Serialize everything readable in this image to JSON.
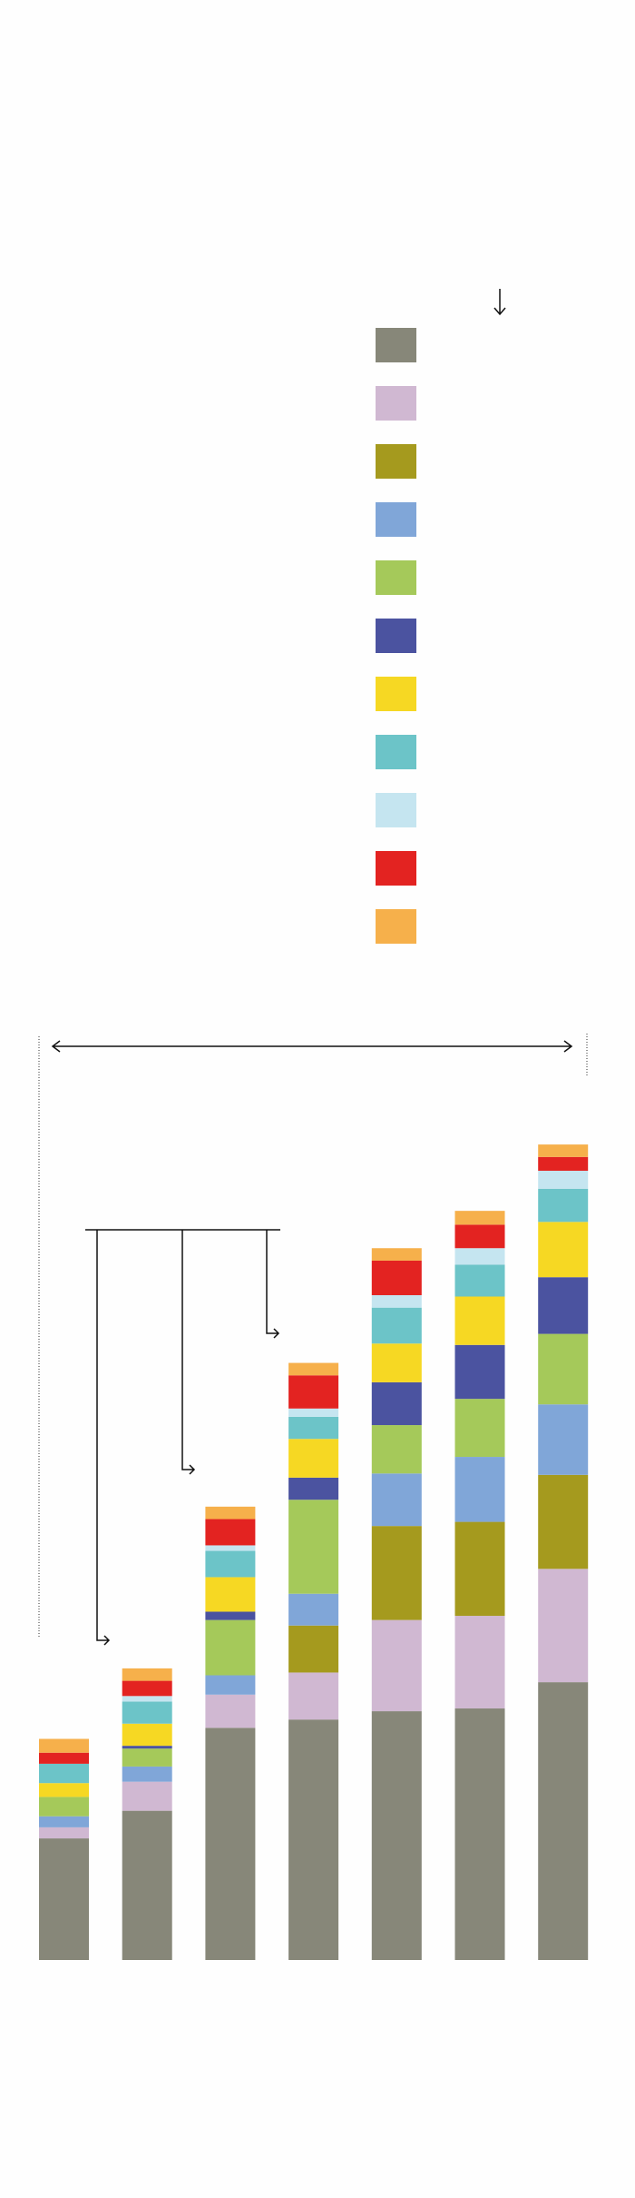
{
  "chart_data": {
    "type": "bar",
    "stacked": true,
    "categories": [
      null,
      null,
      null,
      null,
      null,
      null,
      null
    ],
    "ylim": [
      0,
      1418
    ],
    "series": [
      {
        "color": "#878779",
        "values": [
          88,
          108,
          168,
          174,
          180,
          182,
          201
        ]
      },
      {
        "color": "#d0b8d2",
        "values": [
          8,
          21,
          24,
          34,
          66,
          67,
          82
        ]
      },
      {
        "color": "#a59a1e",
        "values": [
          0,
          0,
          0,
          34,
          68,
          68,
          68
        ]
      },
      {
        "color": "#80a6d8",
        "values": [
          8,
          11,
          14,
          23,
          38,
          47,
          51
        ]
      },
      {
        "color": "#a5c95a",
        "values": [
          14,
          13,
          40,
          68,
          35,
          42,
          51
        ]
      },
      {
        "color": "#4b53a0",
        "values": [
          0,
          2,
          6,
          16,
          31,
          39,
          41
        ]
      },
      {
        "color": "#f6d823",
        "values": [
          10,
          16,
          25,
          28,
          28,
          35,
          40
        ]
      },
      {
        "color": "#6cc4c8",
        "values": [
          14,
          16,
          19,
          16,
          26,
          23,
          24
        ]
      },
      {
        "color": "#c5e5f0",
        "values": [
          0,
          4,
          4,
          6,
          9,
          12,
          13
        ]
      },
      {
        "color": "#e32321",
        "values": [
          8,
          11,
          19,
          24,
          25,
          17,
          10
        ]
      },
      {
        "color": "#f6b04b",
        "values": [
          10,
          9,
          9,
          9,
          9,
          10,
          9
        ]
      }
    ]
  }
}
